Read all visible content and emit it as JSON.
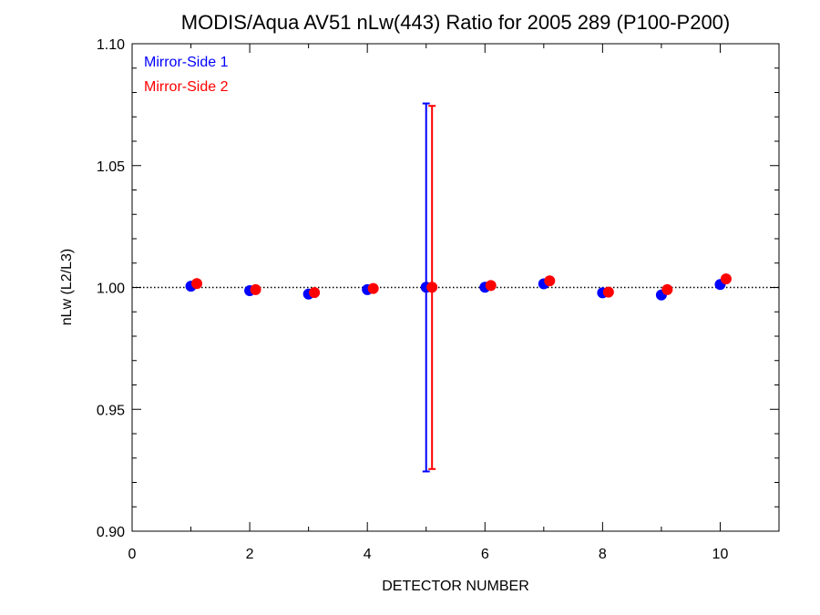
{
  "chart_data": {
    "type": "scatter",
    "title": "MODIS/Aqua AV51 nLw(443) Ratio for 2005 289 (P100-P200)",
    "xlabel": "DETECTOR NUMBER",
    "ylabel": "nLw (L2/L3)",
    "xlim": [
      0,
      11
    ],
    "ylim": [
      0.9,
      1.1
    ],
    "x_ticks": [
      0,
      2,
      4,
      6,
      8,
      10
    ],
    "x_tick_labels": [
      "0",
      "2",
      "4",
      "6",
      "8",
      "10"
    ],
    "y_ticks": [
      0.9,
      0.95,
      1.0,
      1.05,
      1.1
    ],
    "y_tick_labels": [
      "0.90",
      "0.95",
      "1.00",
      "1.05",
      "1.10"
    ],
    "reference_line": 1.0,
    "legend_position": "top-left",
    "series": [
      {
        "name": "Mirror-Side 1",
        "color": "#0000ff",
        "x": [
          1,
          2,
          3,
          4,
          5,
          6,
          7,
          8,
          9,
          10
        ],
        "y": [
          1.0005,
          0.9987,
          0.9973,
          0.9991,
          1.0001,
          1.0001,
          1.0015,
          0.9978,
          0.9969,
          1.0012
        ],
        "error_bars": [
          {
            "x": 5,
            "low": 0.9245,
            "high": 1.0755
          }
        ]
      },
      {
        "name": "Mirror-Side 2",
        "color": "#ff0000",
        "x": [
          1.1,
          2.1,
          3.1,
          4.1,
          5.1,
          6.1,
          7.1,
          8.1,
          9.1,
          10.1
        ],
        "y": [
          1.0016,
          0.9991,
          0.9979,
          0.9996,
          1.0001,
          1.0008,
          1.0027,
          0.9981,
          0.9991,
          1.0035
        ],
        "error_bars": [
          {
            "x": 5.1,
            "low": 0.9255,
            "high": 1.0745
          }
        ]
      }
    ]
  }
}
